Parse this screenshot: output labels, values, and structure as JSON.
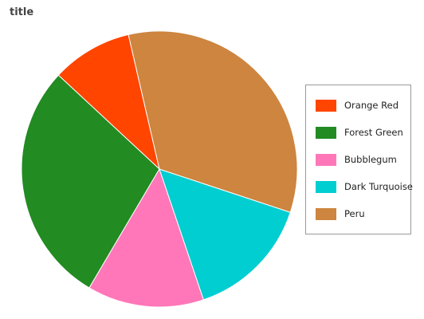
{
  "chart_data": {
    "type": "pie",
    "title": "title",
    "slices": [
      {
        "name": "Orange Red",
        "value": 9,
        "color": "#ff4500"
      },
      {
        "name": "Forest Green",
        "value": 27,
        "color": "#228b22"
      },
      {
        "name": "Bubblegum",
        "value": 13,
        "color": "#ff77b8"
      },
      {
        "name": "Dark Turquoise",
        "value": 14,
        "color": "#00ced1"
      },
      {
        "name": "Peru",
        "value": 32,
        "color": "#cd853f"
      }
    ],
    "start_angle_deg": -13,
    "direction": "counterclockwise",
    "legend_position": "right"
  }
}
